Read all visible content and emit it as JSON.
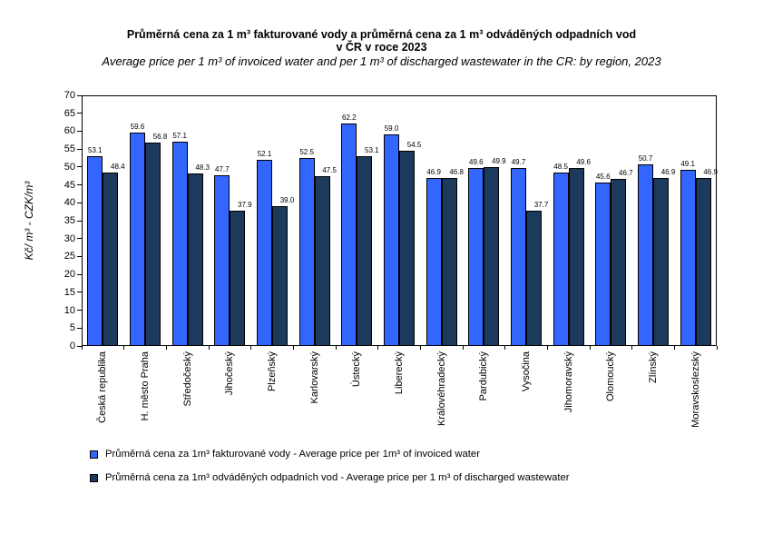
{
  "title": {
    "line1": "Průměrná cena za 1 m³ fakturované vody a průměrná cena za 1 m³ odváděných odpadních vod",
    "line2": "v ČR v roce 2023",
    "subtitle": "Average price per 1 m³ of invoiced water and per 1 m³ of discharged wastewater in the CR: by region, 2023"
  },
  "chart_data": {
    "type": "bar",
    "title": "Průměrná cena za 1 m³ fakturované vody a průměrná cena za 1 m³ odváděných odpadních vod v ČR v roce 2023",
    "subtitle": "Average price per 1 m³ of invoiced water and per 1 m³ of discharged wastewater in the CR: by region, 2023",
    "categories": [
      "Česká republika",
      "H. město Praha",
      "Středočeský",
      "Jihočeský",
      "Plzeňský",
      "Karlovarský",
      "Ústecký",
      "Liberecký",
      "Královéhradecký",
      "Pardubický",
      "Vysočina",
      "Jihomoravský",
      "Olomoucký",
      "Zlínský",
      "Moravskoslezský"
    ],
    "series": [
      {
        "name": "Průměrná cena za 1m³ fakturované vody  - Average price per 1m³ of invoiced water",
        "color": "#3366FF",
        "values": [
          53.1,
          59.6,
          57.1,
          47.7,
          52.1,
          52.5,
          62.2,
          59.0,
          46.9,
          49.6,
          49.7,
          48.5,
          45.6,
          50.7,
          49.1
        ]
      },
      {
        "name": "Průměrná cena za 1m³ odváděných odpadních vod  -  Average price per 1 m³ of discharged wastewater",
        "color": "#1C3A5C",
        "values": [
          48.4,
          56.8,
          48.3,
          37.9,
          39.0,
          47.5,
          53.1,
          54.5,
          46.8,
          49.9,
          37.7,
          49.6,
          46.7,
          46.9,
          46.9
        ]
      }
    ],
    "xlabel": "",
    "ylabel": "Kč/ m³ - CZK/m³",
    "ylim": [
      0,
      70
    ],
    "ytick_step": 5,
    "grid": false,
    "legend_position": "bottom-left",
    "value_labels_decimals": 1
  }
}
